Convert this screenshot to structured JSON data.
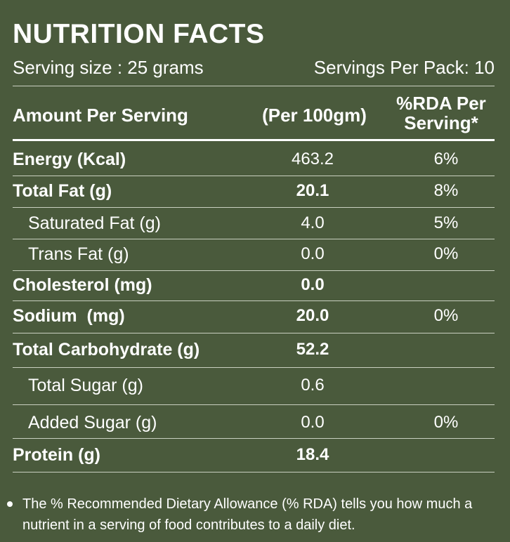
{
  "title": "NUTRITION FACTS",
  "serving_size": "Serving size : 25 grams",
  "servings_per_pack": "Servings Per Pack: 10",
  "header": {
    "amount": "Amount Per Serving",
    "per100": "(Per 100gm)",
    "rda_line1": "%RDA Per",
    "rda_line2": "Serving*"
  },
  "rows": [
    {
      "name": "Energy (Kcal)",
      "value": "463.2",
      "rda": "6%"
    },
    {
      "name": "Total Fat (g)",
      "value": "20.1",
      "rda": "8%"
    },
    {
      "name": "Saturated Fat (g)",
      "value": "4.0",
      "rda": "5%"
    },
    {
      "name": "Trans Fat (g)",
      "value": "0.0",
      "rda": "0%"
    },
    {
      "name": "Cholesterol (mg)",
      "value": "0.0",
      "rda": ""
    },
    {
      "name": "Sodium  (mg)",
      "value": "20.0",
      "rda": "0%"
    },
    {
      "name": "Total Carbohydrate (g)",
      "value": "52.2",
      "rda": ""
    },
    {
      "name": "Total Sugar (g)",
      "value": "0.6",
      "rda": ""
    },
    {
      "name": "Added Sugar (g)",
      "value": "0.0",
      "rda": "0%"
    },
    {
      "name": "Protein (g)",
      "value": "18.4",
      "rda": ""
    }
  ],
  "footnote": "The % Recommended Dietary Allowance (% RDA) tells you how much a nutrient in a serving of food contributes to a daily diet.",
  "colors": {
    "background": "#4a5a3c",
    "text": "#ffffff"
  }
}
